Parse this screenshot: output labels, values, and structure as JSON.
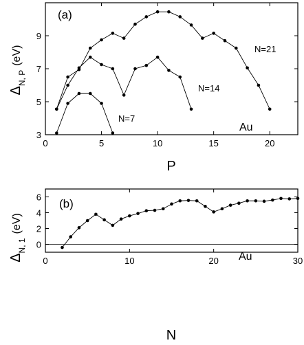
{
  "chart_data": [
    {
      "type": "line",
      "panel_label": "(a)",
      "ylabel": {
        "main": "Δ",
        "sub": "N, P",
        "unit": "(eV)"
      },
      "xlabel": "P",
      "xlim": [
        0,
        22.5
      ],
      "ylim": [
        3,
        11
      ],
      "xticks": [
        0,
        5,
        10,
        15,
        20
      ],
      "yticks": [
        3,
        5,
        7,
        9
      ],
      "annotation": "Au",
      "grid": false,
      "series": [
        {
          "name": "N=21",
          "x": [
            1,
            2,
            3,
            4,
            5,
            6,
            7,
            8,
            9,
            10,
            11,
            12,
            13,
            14,
            15,
            16,
            17,
            18,
            19,
            20
          ],
          "y": [
            4.55,
            6.5,
            6.95,
            8.25,
            8.75,
            9.15,
            8.85,
            9.7,
            10.15,
            10.45,
            10.45,
            10.15,
            9.65,
            8.85,
            9.15,
            8.7,
            8.25,
            7.05,
            6.0,
            4.55
          ]
        },
        {
          "name": "N=14",
          "x": [
            1,
            2,
            3,
            4,
            5,
            6,
            7,
            8,
            9,
            10,
            11,
            12,
            13
          ],
          "y": [
            4.55,
            6.0,
            7.05,
            7.7,
            7.25,
            7.0,
            5.4,
            7.0,
            7.2,
            7.7,
            6.9,
            6.5,
            4.55
          ]
        },
        {
          "name": "N=7",
          "x": [
            1,
            2,
            3,
            4,
            5,
            6
          ],
          "y": [
            3.1,
            4.9,
            5.5,
            5.5,
            4.9,
            3.1
          ]
        }
      ]
    },
    {
      "type": "line",
      "panel_label": "(b)",
      "ylabel": {
        "main": "Δ",
        "sub": "N, 1",
        "unit": "(eV)"
      },
      "xlabel": "N",
      "xlim": [
        0,
        30
      ],
      "ylim": [
        -1,
        7
      ],
      "xticks": [
        0,
        10,
        20,
        30
      ],
      "yticks": [
        0,
        2,
        4,
        6
      ],
      "annotation": "Au",
      "grid": false,
      "reference_line_y": 0,
      "series": [
        {
          "name": "",
          "x": [
            2,
            3,
            4,
            5,
            6,
            7,
            8,
            9,
            10,
            11,
            12,
            13,
            14,
            15,
            16,
            17,
            18,
            19,
            20,
            21,
            22,
            23,
            24,
            25,
            26,
            27,
            28,
            29,
            30
          ],
          "y": [
            -0.4,
            0.95,
            2.1,
            3.0,
            3.8,
            3.1,
            2.4,
            3.2,
            3.6,
            3.9,
            4.25,
            4.3,
            4.5,
            5.1,
            5.5,
            5.55,
            5.5,
            4.8,
            4.1,
            4.5,
            4.95,
            5.2,
            5.5,
            5.5,
            5.45,
            5.6,
            5.8,
            5.75,
            5.8
          ]
        }
      ]
    }
  ]
}
